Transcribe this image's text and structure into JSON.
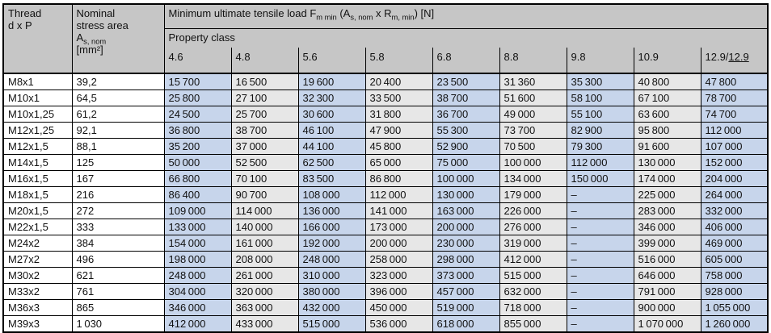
{
  "colors": {
    "header_bg": "#c6c6c6",
    "cell_blue": "#c7d5eb",
    "cell_gray": "#e7e7e7",
    "row_bg": "#ffffff",
    "border": "#000000",
    "text": "#111111"
  },
  "header": {
    "thread_lines": [
      [
        {
          "t": "Thread"
        }
      ],
      [
        {
          "t": "d x P"
        }
      ]
    ],
    "area_lines": [
      [
        {
          "t": "Nominal"
        }
      ],
      [
        {
          "t": "stress area"
        }
      ],
      [
        {
          "t": "A"
        },
        {
          "t": "s, nom",
          "sub": true
        }
      ],
      [
        {
          "t": "[mm²]"
        }
      ]
    ],
    "title_parts": [
      {
        "t": "Minimum ultimate tensile load F"
      },
      {
        "t": "m min",
        "sub": true
      },
      {
        "t": " (A"
      },
      {
        "t": "s, nom",
        "sub": true
      },
      {
        "t": " x R"
      },
      {
        "t": "m, min",
        "sub": true
      },
      {
        "t": ") [N]"
      }
    ],
    "property_class_label": "Property class",
    "classes": [
      {
        "label_parts": [
          {
            "t": "4.6"
          }
        ],
        "shade": "blue"
      },
      {
        "label_parts": [
          {
            "t": "4.8"
          }
        ],
        "shade": "gray"
      },
      {
        "label_parts": [
          {
            "t": "5.6"
          }
        ],
        "shade": "blue"
      },
      {
        "label_parts": [
          {
            "t": "5.8"
          }
        ],
        "shade": "gray"
      },
      {
        "label_parts": [
          {
            "t": "6.8"
          }
        ],
        "shade": "blue"
      },
      {
        "label_parts": [
          {
            "t": "8.8"
          }
        ],
        "shade": "gray"
      },
      {
        "label_parts": [
          {
            "t": "9.8"
          }
        ],
        "shade": "blue"
      },
      {
        "label_parts": [
          {
            "t": "10.9"
          }
        ],
        "shade": "gray"
      },
      {
        "label_parts": [
          {
            "t": "12.9/"
          },
          {
            "t": "12.9",
            "u": true
          }
        ],
        "shade": "blue"
      }
    ]
  },
  "rows": [
    {
      "thread": "M8x1",
      "area": "39,2",
      "values": [
        "15 700",
        "16 500",
        "19 600",
        "20 400",
        "23 500",
        "31 360",
        "35 300",
        "40 800",
        "47 800"
      ]
    },
    {
      "thread": "M10x1",
      "area": "64,5",
      "values": [
        "25 800",
        "27 100",
        "32 300",
        "33 500",
        "38 700",
        "51 600",
        "58 100",
        "67 100",
        "78 700"
      ]
    },
    {
      "thread": "M10x1,25",
      "area": "61,2",
      "values": [
        "24 500",
        "25 700",
        "30 600",
        "31 800",
        "36 700",
        "49 000",
        "55 100",
        "63 600",
        "74 700"
      ]
    },
    {
      "thread": "M12x1,25",
      "area": "92,1",
      "values": [
        "36 800",
        "38 700",
        "46 100",
        "47 900",
        "55 300",
        "73 700",
        "82 900",
        "95 800",
        "112 000"
      ]
    },
    {
      "thread": "M12x1,5",
      "area": "88,1",
      "values": [
        "35 200",
        "37 000",
        "44 100",
        "45 800",
        "52 900",
        "70 500",
        "79 300",
        "91 600",
        "107 000"
      ]
    },
    {
      "thread": "M14x1,5",
      "area": "125",
      "values": [
        "50 000",
        "52 500",
        "62 500",
        "65 000",
        "75 000",
        "100 000",
        "112 000",
        "130 000",
        "152 000"
      ]
    },
    {
      "thread": "M16x1,5",
      "area": "167",
      "values": [
        "66 800",
        "70 100",
        "83 500",
        "86 800",
        "100 000",
        "134 000",
        "150 000",
        "174 000",
        "204 000"
      ]
    },
    {
      "thread": "M18x1,5",
      "area": "216",
      "values": [
        "86 400",
        "90 700",
        "108 000",
        "112 000",
        "130 000",
        "179 000",
        "–",
        "225 000",
        "264 000"
      ]
    },
    {
      "thread": "M20x1,5",
      "area": "272",
      "values": [
        "109 000",
        "114 000",
        "136 000",
        "141 000",
        "163 000",
        "226 000",
        "–",
        "283 000",
        "332 000"
      ]
    },
    {
      "thread": "M22x1,5",
      "area": "333",
      "values": [
        "133 000",
        "140 000",
        "166 000",
        "173 000",
        "200 000",
        "276 000",
        "–",
        "346 000",
        "406 000"
      ]
    },
    {
      "thread": "M24x2",
      "area": "384",
      "values": [
        "154 000",
        "161 000",
        "192 000",
        "200 000",
        "230 000",
        "319 000",
        "–",
        "399 000",
        "469 000"
      ]
    },
    {
      "thread": "M27x2",
      "area": "496",
      "values": [
        "198 000",
        "208 000",
        "248 000",
        "258 000",
        "298 000",
        "412 000",
        "–",
        "516 000",
        "605 000"
      ]
    },
    {
      "thread": "M30x2",
      "area": "621",
      "values": [
        "248 000",
        "261 000",
        "310 000",
        "323 000",
        "373 000",
        "515 000",
        "–",
        "646 000",
        "758 000"
      ]
    },
    {
      "thread": "M33x2",
      "area": "761",
      "values": [
        "304 000",
        "320 000",
        "380 000",
        "396 000",
        "457 000",
        "632 000",
        "–",
        "791 000",
        "928 000"
      ]
    },
    {
      "thread": "M36x3",
      "area": "865",
      "values": [
        "346 000",
        "363 000",
        "432 000",
        "450 000",
        "519 000",
        "718 000",
        "–",
        "900 000",
        "1 055 000"
      ]
    },
    {
      "thread": "M39x3",
      "area": "1 030",
      "values": [
        "412 000",
        "433 000",
        "515 000",
        "536 000",
        "618 000",
        "855 000",
        "–",
        "1 070 000",
        "1 260 000"
      ]
    }
  ]
}
